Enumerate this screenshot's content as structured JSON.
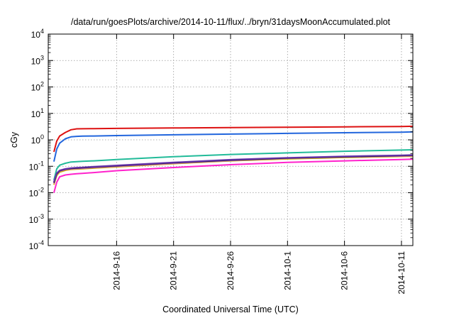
{
  "chart_data": {
    "type": "line",
    "title": "/data/run/goesPlots/archive/2014-10-11/flux/../bryn/31daysMoonAccumulated.plot",
    "xlabel": "Coordinated Universal Time (UTC)",
    "ylabel": "cGy",
    "yscale": "log",
    "ylim": [
      0.0001,
      10000
    ],
    "xlim": [
      "2014-09-10",
      "2014-10-12"
    ],
    "grid": true,
    "y_ticks": [
      {
        "base": "10",
        "exp": "-4"
      },
      {
        "base": "10",
        "exp": "-3"
      },
      {
        "base": "10",
        "exp": "-2"
      },
      {
        "base": "10",
        "exp": "-1"
      },
      {
        "base": "10",
        "exp": "0"
      },
      {
        "base": "10",
        "exp": "1"
      },
      {
        "base": "10",
        "exp": "2"
      },
      {
        "base": "10",
        "exp": "3"
      },
      {
        "base": "10",
        "exp": "4"
      }
    ],
    "x_ticks": [
      "2014-9-16",
      "2014-9-21",
      "2014-9-26",
      "2014-10-1",
      "2014-10-6",
      "2014-10-11"
    ],
    "x": [
      "2014-09-10T12:00",
      "2014-09-10T18:00",
      "2014-09-11T00:00",
      "2014-09-11T12:00",
      "2014-09-12T00:00",
      "2014-09-12T12:00",
      "2014-09-13T00:00",
      "2014-09-14T00:00",
      "2014-09-16T00:00",
      "2014-09-21T00:00",
      "2014-09-26T00:00",
      "2014-10-01T00:00",
      "2014-10-06T00:00",
      "2014-10-11T00:00",
      "2014-10-12T00:00"
    ],
    "series": [
      {
        "color": "#dd1111",
        "values": [
          0.35,
          0.9,
          1.4,
          1.9,
          2.4,
          2.6,
          2.62,
          2.65,
          2.7,
          2.8,
          2.9,
          3.0,
          3.1,
          3.2,
          3.25
        ]
      },
      {
        "color": "#2266dd",
        "values": [
          0.15,
          0.45,
          0.75,
          1.1,
          1.3,
          1.35,
          1.38,
          1.4,
          1.45,
          1.55,
          1.65,
          1.75,
          1.85,
          1.95,
          2.0
        ]
      },
      {
        "color": "#22bb99",
        "values": [
          0.03,
          0.08,
          0.11,
          0.13,
          0.145,
          0.15,
          0.155,
          0.16,
          0.18,
          0.23,
          0.28,
          0.32,
          0.37,
          0.41,
          0.42
        ]
      },
      {
        "color": "#d4b800",
        "values": [
          0.02,
          0.045,
          0.06,
          0.07,
          0.076,
          0.078,
          0.08,
          0.085,
          0.095,
          0.125,
          0.16,
          0.19,
          0.215,
          0.235,
          0.24
        ]
      },
      {
        "color": "#cc66cc",
        "values": [
          0.022,
          0.05,
          0.065,
          0.075,
          0.08,
          0.082,
          0.084,
          0.09,
          0.1,
          0.13,
          0.165,
          0.2,
          0.225,
          0.245,
          0.25
        ]
      },
      {
        "color": "#111133",
        "values": [
          0.024,
          0.052,
          0.068,
          0.078,
          0.083,
          0.086,
          0.088,
          0.094,
          0.105,
          0.136,
          0.172,
          0.205,
          0.23,
          0.255,
          0.26
        ]
      },
      {
        "color": "#6633aa",
        "values": [
          0.026,
          0.055,
          0.07,
          0.08,
          0.086,
          0.089,
          0.091,
          0.097,
          0.108,
          0.14,
          0.178,
          0.21,
          0.238,
          0.262,
          0.268
        ]
      },
      {
        "color": "#ff22cc",
        "values": [
          0.01,
          0.025,
          0.04,
          0.047,
          0.05,
          0.052,
          0.054,
          0.058,
          0.068,
          0.09,
          0.115,
          0.14,
          0.16,
          0.18,
          0.185
        ]
      }
    ]
  }
}
